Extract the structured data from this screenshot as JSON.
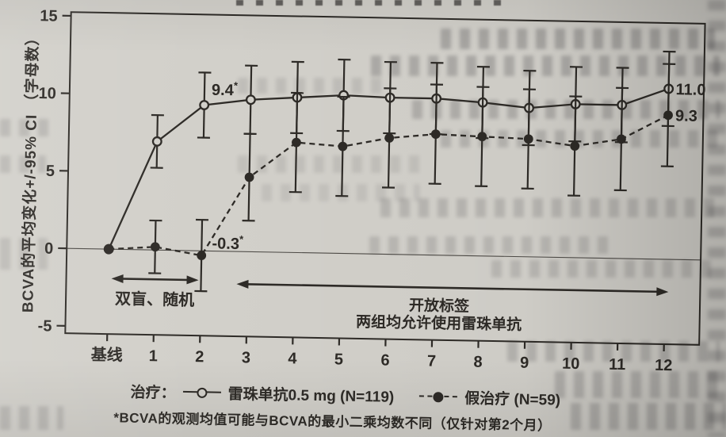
{
  "figure": {
    "y_axis_label": "BCVA的平均变化+/-95% CI （字母数）",
    "phase1_label": "双盲、随机",
    "phase2_label_line1": "开放标签",
    "phase2_label_line2": "两组均允许使用雷珠单抗",
    "legend_prefix": "治疗：",
    "legend_series1": "雷珠单抗0.5 mg (N=119)",
    "legend_series2": "假治疗 (N=59)",
    "footnote": "*BCVA的观测均值可能与BCVA的最小二乘均数不同（仅针对第2个月）"
  },
  "chart_data": {
    "type": "line",
    "categories": [
      "基线",
      "1",
      "2",
      "3",
      "4",
      "5",
      "6",
      "7",
      "8",
      "9",
      "10",
      "11",
      "12"
    ],
    "xlabel": "",
    "ylabel": "BCVA的平均变化+/-95% CI （字母数）",
    "ylim": [
      -5.5,
      15.5
    ],
    "yticks": [
      15,
      10,
      5,
      0,
      -5
    ],
    "grid": false,
    "zero_reference_line": true,
    "legend_position": "bottom",
    "series": [
      {
        "name": "雷珠单抗0.5 mg (N=119)",
        "line": "solid",
        "marker": "open-circle",
        "values": [
          0,
          7.0,
          9.4,
          9.8,
          10.0,
          10.2,
          10.1,
          10.1,
          9.9,
          9.6,
          9.9,
          9.9,
          11.0
        ],
        "ci_halfwidth": [
          0,
          1.7,
          2.1,
          2.2,
          2.3,
          2.3,
          2.3,
          2.3,
          2.3,
          2.4,
          2.4,
          2.4,
          2.4
        ],
        "point_labels": {
          "2": "9.4*",
          "12": "11.0"
        }
      },
      {
        "name": "假治疗 (N=59)",
        "line": "dashed",
        "marker": "filled-circle",
        "values": [
          0,
          0.2,
          -0.3,
          4.8,
          7.1,
          6.9,
          7.5,
          7.8,
          7.7,
          7.6,
          7.2,
          7.7,
          9.3
        ],
        "ci_halfwidth": [
          0,
          1.7,
          2.3,
          2.8,
          3.2,
          3.2,
          3.2,
          3.2,
          3.2,
          3.2,
          3.2,
          3.3,
          3.3
        ],
        "point_labels": {
          "2": "-0.3*",
          "12": "9.3"
        }
      }
    ],
    "annotations": {
      "phase1": "双盲、随机",
      "phase2": [
        "开放标签",
        "两组均允许使用雷珠单抗"
      ],
      "phase1_span_months": [
        0,
        2
      ],
      "phase2_span_months": [
        2.7,
        12
      ]
    },
    "title": "",
    "footnote": "*BCVA的观测均值可能与BCVA的最小二乘均数不同（仅针对第2个月）"
  },
  "colors": {
    "ink": "#2e2b27",
    "paper": "#d2d0ca"
  }
}
